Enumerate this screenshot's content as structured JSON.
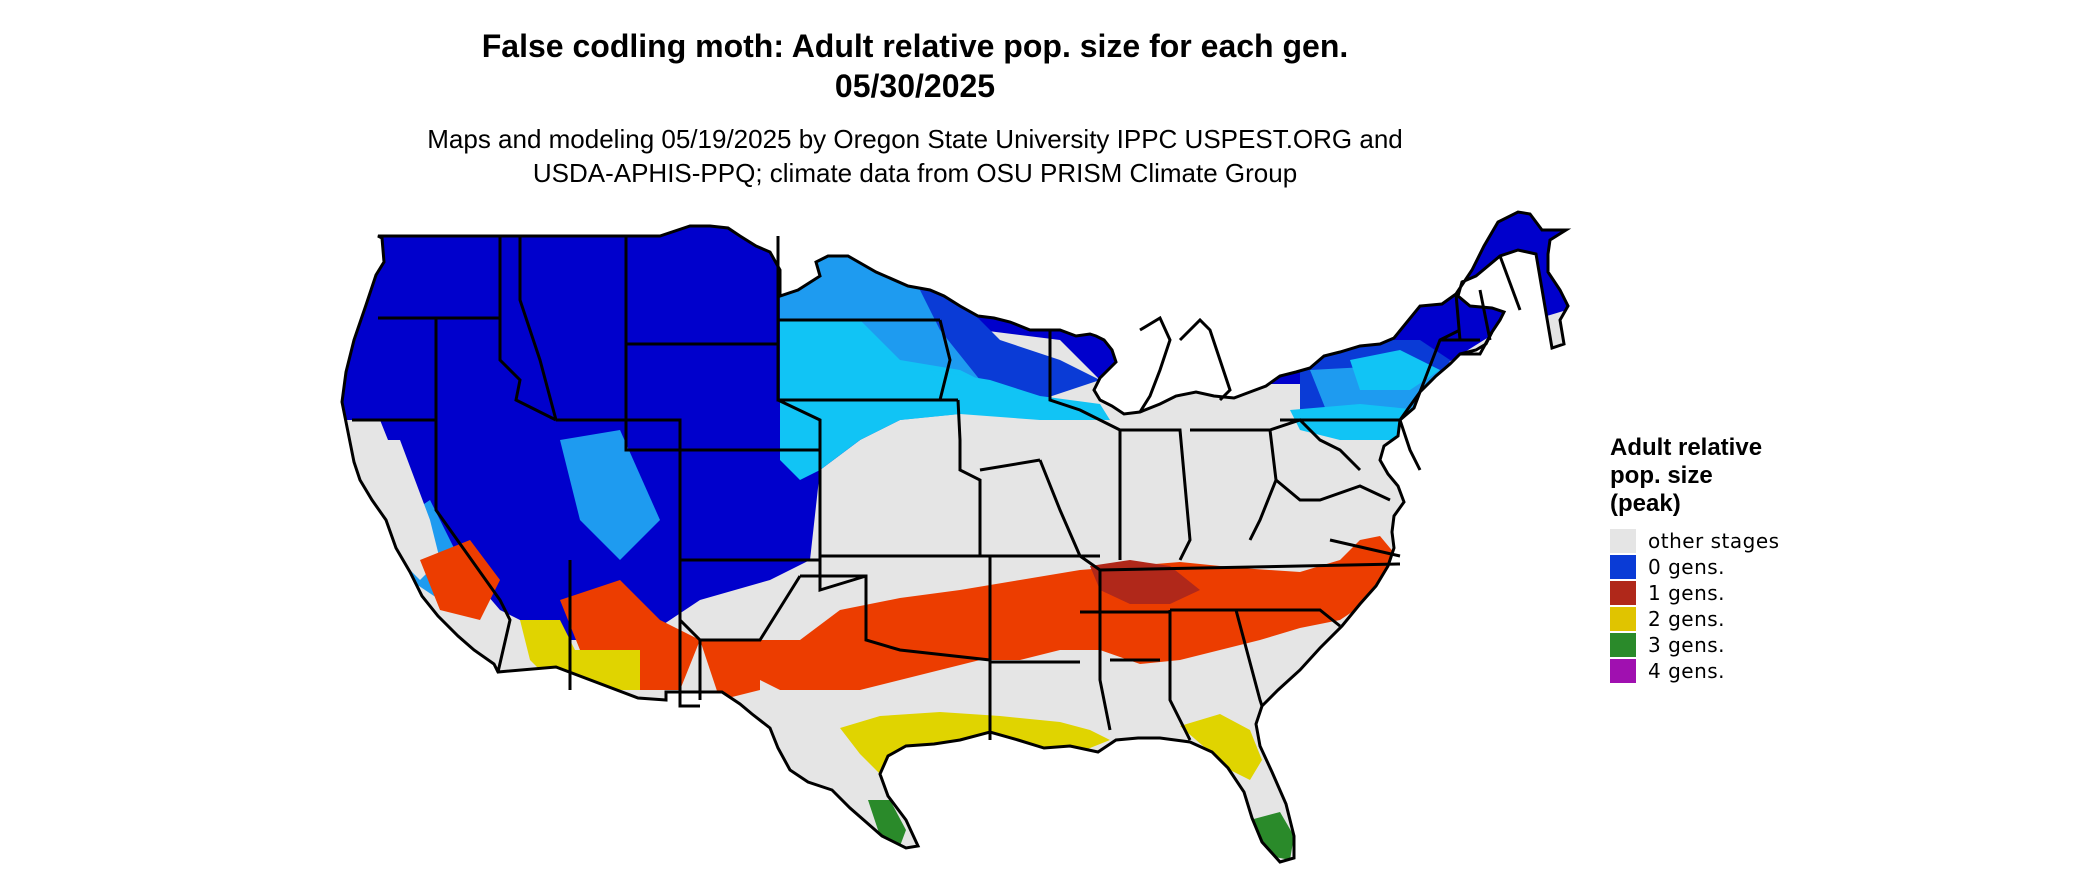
{
  "title": {
    "line1": "False codling moth: Adult relative pop. size for each gen.",
    "line2": "05/30/2025"
  },
  "subtitle": {
    "line1": "Maps and modeling 05/19/2025 by Oregon State University IPPC USPEST.ORG and",
    "line2": "USDA-APHIS-PPQ; climate data from OSU PRISM Climate Group"
  },
  "legend": {
    "title_lines": [
      "Adult relative",
      "pop. size",
      "(peak)"
    ],
    "items": [
      {
        "label": "other stages",
        "color": "#e5e5e5"
      },
      {
        "label": "0 gens.",
        "color": "#0a3bd6"
      },
      {
        "label": "1 gens.",
        "color": "#b0281a"
      },
      {
        "label": "2 gens.",
        "color": "#e0c400"
      },
      {
        "label": "3 gens.",
        "color": "#2a8a2a"
      },
      {
        "label": "4 gens.",
        "color": "#a010b0"
      }
    ]
  },
  "map": {
    "region": "contiguous-united-states",
    "colors": {
      "dark_blue": "#0000cc",
      "mid_blue": "#0a3bd6",
      "light_blue": "#1e9bf0",
      "cyan": "#11c4f5",
      "gray": "#e5e5e5",
      "orange": "#ec3d00",
      "dark_red": "#b0281a",
      "yellow": "#e0d400",
      "green": "#2a8a2a",
      "border": "#000000"
    }
  }
}
